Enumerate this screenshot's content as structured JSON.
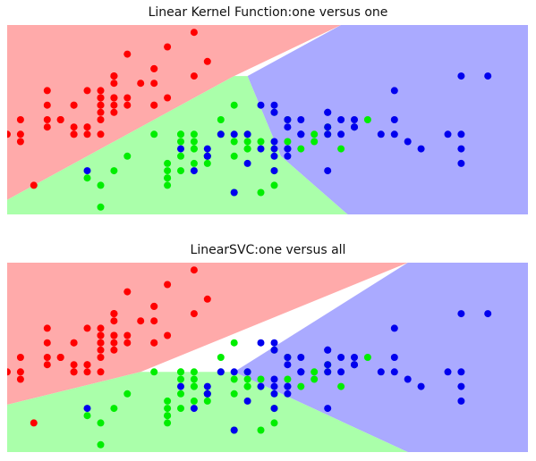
{
  "page": {
    "titles": [
      "Linear Kernel Function:one versus one",
      "LinearSVC:one versus all"
    ]
  },
  "colors": {
    "class0_region": "#ffaaaa",
    "class1_region": "#aaffaa",
    "class2_region": "#aaaaff",
    "class0_point": "#ff0000",
    "class1_point": "#00ee00",
    "class2_point": "#0000ee"
  },
  "chart_data": [
    {
      "type": "scatter",
      "title": "Linear Kernel Function:one versus one",
      "xlabel": "",
      "ylabel": "",
      "xlim": [
        4.3,
        8.2
      ],
      "ylim": [
        1.9,
        4.5
      ],
      "axes": "off",
      "grid": false,
      "regions": [
        {
          "class": 0,
          "name": "red",
          "polygon": [
            [
              4.3,
              1.9
            ],
            [
              4.3,
              4.5
            ],
            [
              6.8,
              4.5
            ],
            [
              6.0,
              3.8
            ],
            [
              4.3,
              2.1
            ]
          ]
        },
        {
          "class": 2,
          "name": "blue",
          "polygon": [
            [
              6.8,
              4.5
            ],
            [
              8.2,
              4.5
            ],
            [
              8.2,
              1.9
            ],
            [
              6.85,
              1.9
            ],
            [
              6.35,
              2.7
            ],
            [
              6.1,
              3.8
            ]
          ]
        },
        {
          "class": 1,
          "name": "green",
          "polygon": [
            [
              4.3,
              1.9
            ],
            [
              4.3,
              2.1
            ],
            [
              6.0,
              3.8
            ],
            [
              6.1,
              3.8
            ],
            [
              6.35,
              2.7
            ],
            [
              6.85,
              1.9
            ]
          ]
        }
      ]
    },
    {
      "type": "scatter",
      "title": "LinearSVC:one versus all",
      "xlabel": "",
      "ylabel": "",
      "xlim": [
        4.3,
        8.2
      ],
      "ylim": [
        1.9,
        4.5
      ],
      "axes": "off",
      "grid": false,
      "regions": [
        {
          "class": 0,
          "name": "red",
          "polygon": [
            [
              4.3,
              1.9
            ],
            [
              4.3,
              4.5
            ],
            [
              7.3,
              4.5
            ],
            [
              5.3,
              3.0
            ],
            [
              4.3,
              2.55
            ]
          ]
        },
        {
          "class": 2,
          "name": "blue",
          "polygon": [
            [
              7.3,
              4.5
            ],
            [
              8.2,
              4.5
            ],
            [
              8.2,
              1.9
            ],
            [
              7.3,
              1.9
            ],
            [
              6.0,
              3.0
            ]
          ]
        },
        {
          "class": 1,
          "name": "green",
          "polygon": [
            [
              4.3,
              1.9
            ],
            [
              4.3,
              2.55
            ],
            [
              5.3,
              3.0
            ],
            [
              6.0,
              3.0
            ],
            [
              7.3,
              1.9
            ]
          ]
        }
      ]
    }
  ],
  "points": {
    "class0": [
      [
        5.1,
        3.5
      ],
      [
        4.9,
        3.0
      ],
      [
        4.7,
        3.2
      ],
      [
        4.6,
        3.1
      ],
      [
        5.0,
        3.6
      ],
      [
        5.4,
        3.9
      ],
      [
        4.6,
        3.4
      ],
      [
        5.0,
        3.4
      ],
      [
        4.4,
        2.9
      ],
      [
        4.9,
        3.1
      ],
      [
        5.4,
        3.7
      ],
      [
        4.8,
        3.4
      ],
      [
        4.8,
        3.0
      ],
      [
        4.3,
        3.0
      ],
      [
        5.8,
        4.0
      ],
      [
        5.7,
        4.4
      ],
      [
        5.4,
        3.9
      ],
      [
        5.1,
        3.5
      ],
      [
        5.7,
        3.8
      ],
      [
        5.1,
        3.8
      ],
      [
        5.4,
        3.4
      ],
      [
        5.1,
        3.7
      ],
      [
        4.6,
        3.6
      ],
      [
        5.1,
        3.3
      ],
      [
        4.8,
        3.4
      ],
      [
        5.0,
        3.0
      ],
      [
        5.0,
        3.4
      ],
      [
        5.2,
        3.5
      ],
      [
        5.2,
        3.4
      ],
      [
        4.7,
        3.2
      ],
      [
        4.8,
        3.1
      ],
      [
        5.4,
        3.4
      ],
      [
        5.2,
        4.1
      ],
      [
        5.5,
        4.2
      ],
      [
        4.9,
        3.1
      ],
      [
        5.0,
        3.2
      ],
      [
        5.5,
        3.5
      ],
      [
        4.9,
        3.6
      ],
      [
        4.4,
        3.0
      ],
      [
        5.1,
        3.4
      ],
      [
        5.0,
        3.5
      ],
      [
        4.5,
        2.3
      ],
      [
        4.4,
        3.2
      ],
      [
        5.0,
        3.5
      ],
      [
        5.1,
        3.8
      ],
      [
        4.8,
        3.0
      ],
      [
        5.1,
        3.8
      ],
      [
        4.6,
        3.2
      ],
      [
        5.3,
        3.7
      ],
      [
        5.0,
        3.3
      ]
    ],
    "class1": [
      [
        7.0,
        3.2
      ],
      [
        6.4,
        3.2
      ],
      [
        6.9,
        3.1
      ],
      [
        5.5,
        2.3
      ],
      [
        6.5,
        2.8
      ],
      [
        5.7,
        2.8
      ],
      [
        6.3,
        3.3
      ],
      [
        4.9,
        2.4
      ],
      [
        6.6,
        2.9
      ],
      [
        5.2,
        2.7
      ],
      [
        5.0,
        2.0
      ],
      [
        5.9,
        3.0
      ],
      [
        6.0,
        2.2
      ],
      [
        6.1,
        2.9
      ],
      [
        5.6,
        2.9
      ],
      [
        6.7,
        3.1
      ],
      [
        5.6,
        3.0
      ],
      [
        5.8,
        2.7
      ],
      [
        6.2,
        2.2
      ],
      [
        5.6,
        2.5
      ],
      [
        5.9,
        3.2
      ],
      [
        6.1,
        2.8
      ],
      [
        6.3,
        2.5
      ],
      [
        6.1,
        2.8
      ],
      [
        6.4,
        2.9
      ],
      [
        6.6,
        3.0
      ],
      [
        6.8,
        2.8
      ],
      [
        6.7,
        3.0
      ],
      [
        6.0,
        2.9
      ],
      [
        5.7,
        2.6
      ],
      [
        5.5,
        2.4
      ],
      [
        5.5,
        2.4
      ],
      [
        5.8,
        2.7
      ],
      [
        6.0,
        2.7
      ],
      [
        5.4,
        3.0
      ],
      [
        6.0,
        3.4
      ],
      [
        6.7,
        3.1
      ],
      [
        6.3,
        2.3
      ],
      [
        5.6,
        3.0
      ],
      [
        5.5,
        2.5
      ],
      [
        5.5,
        2.6
      ],
      [
        6.1,
        3.0
      ],
      [
        5.8,
        2.6
      ],
      [
        5.0,
        2.3
      ],
      [
        5.6,
        2.7
      ],
      [
        5.7,
        3.0
      ],
      [
        5.7,
        2.9
      ],
      [
        6.2,
        2.9
      ],
      [
        5.1,
        2.5
      ],
      [
        5.7,
        2.8
      ]
    ],
    "class2": [
      [
        6.3,
        3.3
      ],
      [
        5.8,
        2.7
      ],
      [
        7.1,
        3.0
      ],
      [
        6.3,
        2.9
      ],
      [
        6.5,
        3.0
      ],
      [
        7.6,
        3.0
      ],
      [
        4.9,
        2.5
      ],
      [
        7.3,
        2.9
      ],
      [
        6.7,
        2.5
      ],
      [
        7.2,
        3.6
      ],
      [
        6.5,
        3.2
      ],
      [
        6.4,
        2.7
      ],
      [
        6.8,
        3.0
      ],
      [
        5.7,
        2.5
      ],
      [
        5.8,
        2.8
      ],
      [
        6.4,
        3.2
      ],
      [
        6.5,
        3.0
      ],
      [
        7.7,
        3.8
      ],
      [
        7.7,
        2.6
      ],
      [
        6.0,
        2.2
      ],
      [
        6.9,
        3.2
      ],
      [
        5.6,
        2.8
      ],
      [
        7.7,
        2.8
      ],
      [
        6.3,
        2.7
      ],
      [
        6.7,
        3.3
      ],
      [
        7.2,
        3.2
      ],
      [
        6.2,
        2.8
      ],
      [
        6.1,
        3.0
      ],
      [
        6.4,
        2.8
      ],
      [
        7.2,
        3.0
      ],
      [
        7.4,
        2.8
      ],
      [
        7.9,
        3.8
      ],
      [
        6.4,
        2.8
      ],
      [
        6.3,
        2.8
      ],
      [
        6.1,
        2.6
      ],
      [
        7.7,
        3.0
      ],
      [
        6.3,
        3.4
      ],
      [
        6.4,
        3.1
      ],
      [
        6.0,
        3.0
      ],
      [
        6.9,
        3.1
      ],
      [
        6.7,
        3.1
      ],
      [
        6.9,
        3.1
      ],
      [
        5.8,
        2.7
      ],
      [
        6.8,
        3.2
      ],
      [
        6.7,
        3.3
      ],
      [
        6.7,
        3.0
      ],
      [
        6.3,
        2.5
      ],
      [
        6.5,
        3.0
      ],
      [
        6.2,
        3.4
      ],
      [
        5.9,
        3.0
      ]
    ]
  }
}
